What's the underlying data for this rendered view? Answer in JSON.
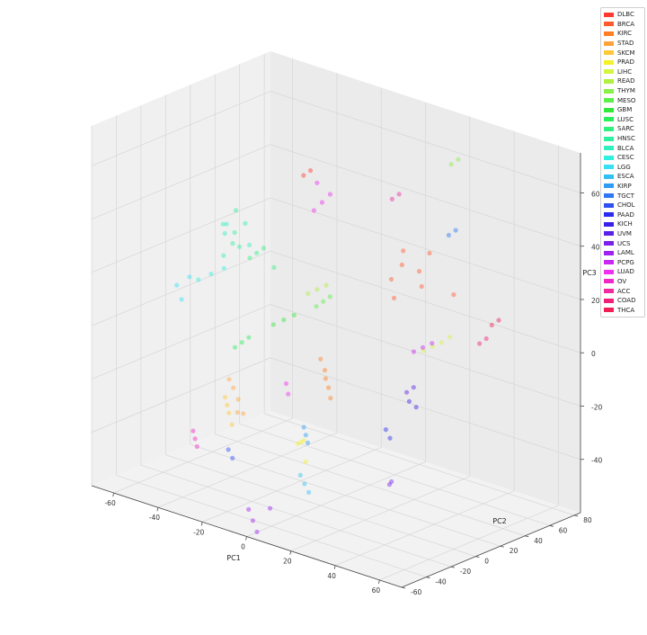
{
  "chart_data": {
    "type": "scatter",
    "title": "",
    "xlabel": "PC1",
    "ylabel": "PC2",
    "zlabel": "PC3",
    "xlim": [
      -70,
      70
    ],
    "ylim": [
      -60,
      85
    ],
    "zlim": [
      -60,
      75
    ],
    "xticks": [
      -60,
      -40,
      -20,
      0,
      20,
      40,
      60
    ],
    "yticks": [
      -60,
      -40,
      -20,
      0,
      20,
      40,
      60,
      80
    ],
    "zticks": [
      -40,
      -20,
      0,
      20,
      40,
      60
    ],
    "grid": true,
    "legend_position": "top-right",
    "series": [
      {
        "name": "DLBC",
        "color": "#ff3b30",
        "points": [
          [
            -30,
            40,
            48
          ],
          [
            -28,
            42,
            50
          ]
        ]
      },
      {
        "name": "BRCA",
        "color": "#ff5a2e",
        "points": [
          [
            20,
            30,
            30
          ],
          [
            25,
            35,
            28
          ],
          [
            30,
            28,
            25
          ],
          [
            15,
            40,
            32
          ],
          [
            35,
            45,
            20
          ],
          [
            22,
            20,
            20
          ],
          [
            28,
            38,
            35
          ],
          [
            18,
            25,
            25
          ]
        ]
      },
      {
        "name": "KIRC",
        "color": "#ff7f22",
        "points": [
          [
            5,
            -5,
            -10
          ],
          [
            8,
            -8,
            -12
          ],
          [
            3,
            -2,
            -8
          ],
          [
            10,
            -10,
            -15
          ],
          [
            0,
            0,
            -5
          ]
        ]
      },
      {
        "name": "STAD",
        "color": "#ffa43a",
        "points": [
          [
            -45,
            10,
            -30
          ],
          [
            -40,
            5,
            -32
          ],
          [
            -48,
            12,
            -28
          ],
          [
            -35,
            0,
            -35
          ],
          [
            -42,
            8,
            -38
          ]
        ]
      },
      {
        "name": "SKCM",
        "color": "#ffc838",
        "points": [
          [
            -20,
            -40,
            -20
          ],
          [
            -18,
            -42,
            -22
          ],
          [
            -22,
            -38,
            -18
          ],
          [
            -15,
            -45,
            -25
          ]
        ]
      },
      {
        "name": "PRAD",
        "color": "#f5f02a",
        "points": [
          [
            5,
            -25,
            -30
          ],
          [
            8,
            -28,
            -28
          ],
          [
            2,
            -22,
            -32
          ],
          [
            10,
            -30,
            -35
          ]
        ]
      },
      {
        "name": "LIHC",
        "color": "#d4f540",
        "points": [
          [
            45,
            10,
            10
          ],
          [
            48,
            12,
            12
          ],
          [
            42,
            8,
            8
          ],
          [
            50,
            15,
            14
          ]
        ]
      },
      {
        "name": "READ",
        "color": "#b0f040",
        "points": [
          [
            -35,
            60,
            0
          ],
          [
            -32,
            62,
            2
          ],
          [
            -38,
            58,
            -2
          ]
        ]
      },
      {
        "name": "THYM",
        "color": "#88f048",
        "points": [
          [
            20,
            70,
            60
          ],
          [
            22,
            72,
            62
          ]
        ]
      },
      {
        "name": "MESO",
        "color": "#5cf04a",
        "points": [
          [
            -10,
            20,
            10
          ],
          [
            -8,
            22,
            12
          ],
          [
            -12,
            18,
            8
          ]
        ]
      },
      {
        "name": "GBM",
        "color": "#32e83a",
        "points": [
          [
            -25,
            15,
            0
          ],
          [
            -22,
            18,
            2
          ],
          [
            -28,
            12,
            -2
          ]
        ]
      },
      {
        "name": "LUSC",
        "color": "#28f05a",
        "points": [
          [
            -30,
            -10,
            -5
          ],
          [
            -28,
            -8,
            -3
          ],
          [
            -32,
            -12,
            -7
          ]
        ]
      },
      {
        "name": "SARC",
        "color": "#30f080",
        "points": [
          [
            -40,
            20,
            20
          ],
          [
            -38,
            22,
            22
          ],
          [
            -42,
            18,
            18
          ],
          [
            -35,
            25,
            15
          ]
        ]
      },
      {
        "name": "HNSC",
        "color": "#2ef0a0",
        "points": [
          [
            -50,
            20,
            25
          ],
          [
            -48,
            25,
            28
          ],
          [
            -45,
            15,
            22
          ],
          [
            -52,
            22,
            20
          ],
          [
            -55,
            30,
            30
          ]
        ]
      },
      {
        "name": "BLCA",
        "color": "#30f0c0",
        "points": [
          [
            -60,
            30,
            20
          ],
          [
            -58,
            25,
            25
          ],
          [
            -55,
            20,
            15
          ],
          [
            -62,
            35,
            22
          ],
          [
            -50,
            32,
            18
          ]
        ]
      },
      {
        "name": "CESC",
        "color": "#30f0e0",
        "points": [
          [
            -55,
            10,
            10
          ],
          [
            -52,
            15,
            12
          ],
          [
            -58,
            5,
            8
          ]
        ]
      },
      {
        "name": "LGG",
        "color": "#38e0f5",
        "points": [
          [
            -65,
            0,
            5
          ],
          [
            -62,
            5,
            8
          ],
          [
            -60,
            -5,
            2
          ]
        ]
      },
      {
        "name": "ESCA",
        "color": "#30c0f5",
        "points": [
          [
            15,
            -40,
            -40
          ],
          [
            18,
            -42,
            -42
          ],
          [
            12,
            -38,
            -38
          ]
        ]
      },
      {
        "name": "KIRP",
        "color": "#2e9cf5",
        "points": [
          [
            10,
            -30,
            -25
          ],
          [
            12,
            -32,
            -27
          ],
          [
            8,
            -28,
            -23
          ]
        ]
      },
      {
        "name": "TGCT",
        "color": "#2e78f5",
        "points": [
          [
            30,
            50,
            40
          ],
          [
            32,
            52,
            42
          ]
        ]
      },
      {
        "name": "CHOL",
        "color": "#2e50f0",
        "points": [
          [
            -25,
            -30,
            -40
          ],
          [
            -22,
            -32,
            -42
          ]
        ]
      },
      {
        "name": "PAAD",
        "color": "#2a2cf0",
        "points": [
          [
            35,
            -10,
            -20
          ],
          [
            38,
            -12,
            -22
          ]
        ]
      },
      {
        "name": "KICH",
        "color": "#3a20e8",
        "points": [
          [
            40,
            0,
            -10
          ],
          [
            42,
            2,
            -12
          ]
        ]
      },
      {
        "name": "UVM",
        "color": "#5a20e8",
        "points": [
          [
            50,
            -20,
            0
          ],
          [
            52,
            -18,
            2
          ]
        ]
      },
      {
        "name": "UCS",
        "color": "#7a20e8",
        "points": [
          [
            45,
            -25,
            -35
          ],
          [
            47,
            -27,
            -33
          ]
        ]
      },
      {
        "name": "LAML",
        "color": "#a020f0",
        "points": [
          [
            0,
            -55,
            -55
          ],
          [
            3,
            -57,
            -58
          ],
          [
            -3,
            -53,
            -52
          ],
          [
            5,
            -50,
            -50
          ]
        ]
      },
      {
        "name": "PCPG",
        "color": "#c828f0",
        "points": [
          [
            35,
            20,
            5
          ],
          [
            38,
            22,
            7
          ],
          [
            32,
            18,
            3
          ]
        ]
      },
      {
        "name": "LUAD",
        "color": "#f030f0",
        "points": [
          [
            -30,
            55,
            35
          ],
          [
            -28,
            58,
            38
          ],
          [
            -32,
            52,
            32
          ],
          [
            -35,
            60,
            40
          ],
          [
            -10,
            -10,
            -15
          ],
          [
            -8,
            -12,
            -18
          ]
        ]
      },
      {
        "name": "OV",
        "color": "#f028c8",
        "points": [
          [
            -40,
            -30,
            -40
          ],
          [
            -38,
            -32,
            -42
          ],
          [
            -42,
            -28,
            -38
          ]
        ]
      },
      {
        "name": "ACC",
        "color": "#f02aa0",
        "points": [
          [
            10,
            40,
            50
          ],
          [
            12,
            42,
            52
          ]
        ]
      },
      {
        "name": "COAD",
        "color": "#f0207a",
        "points": [
          [
            55,
            30,
            10
          ],
          [
            57,
            32,
            12
          ]
        ]
      },
      {
        "name": "THCA",
        "color": "#f01e54",
        "points": [
          [
            55,
            40,
            15
          ],
          [
            57,
            42,
            17
          ]
        ]
      }
    ]
  }
}
